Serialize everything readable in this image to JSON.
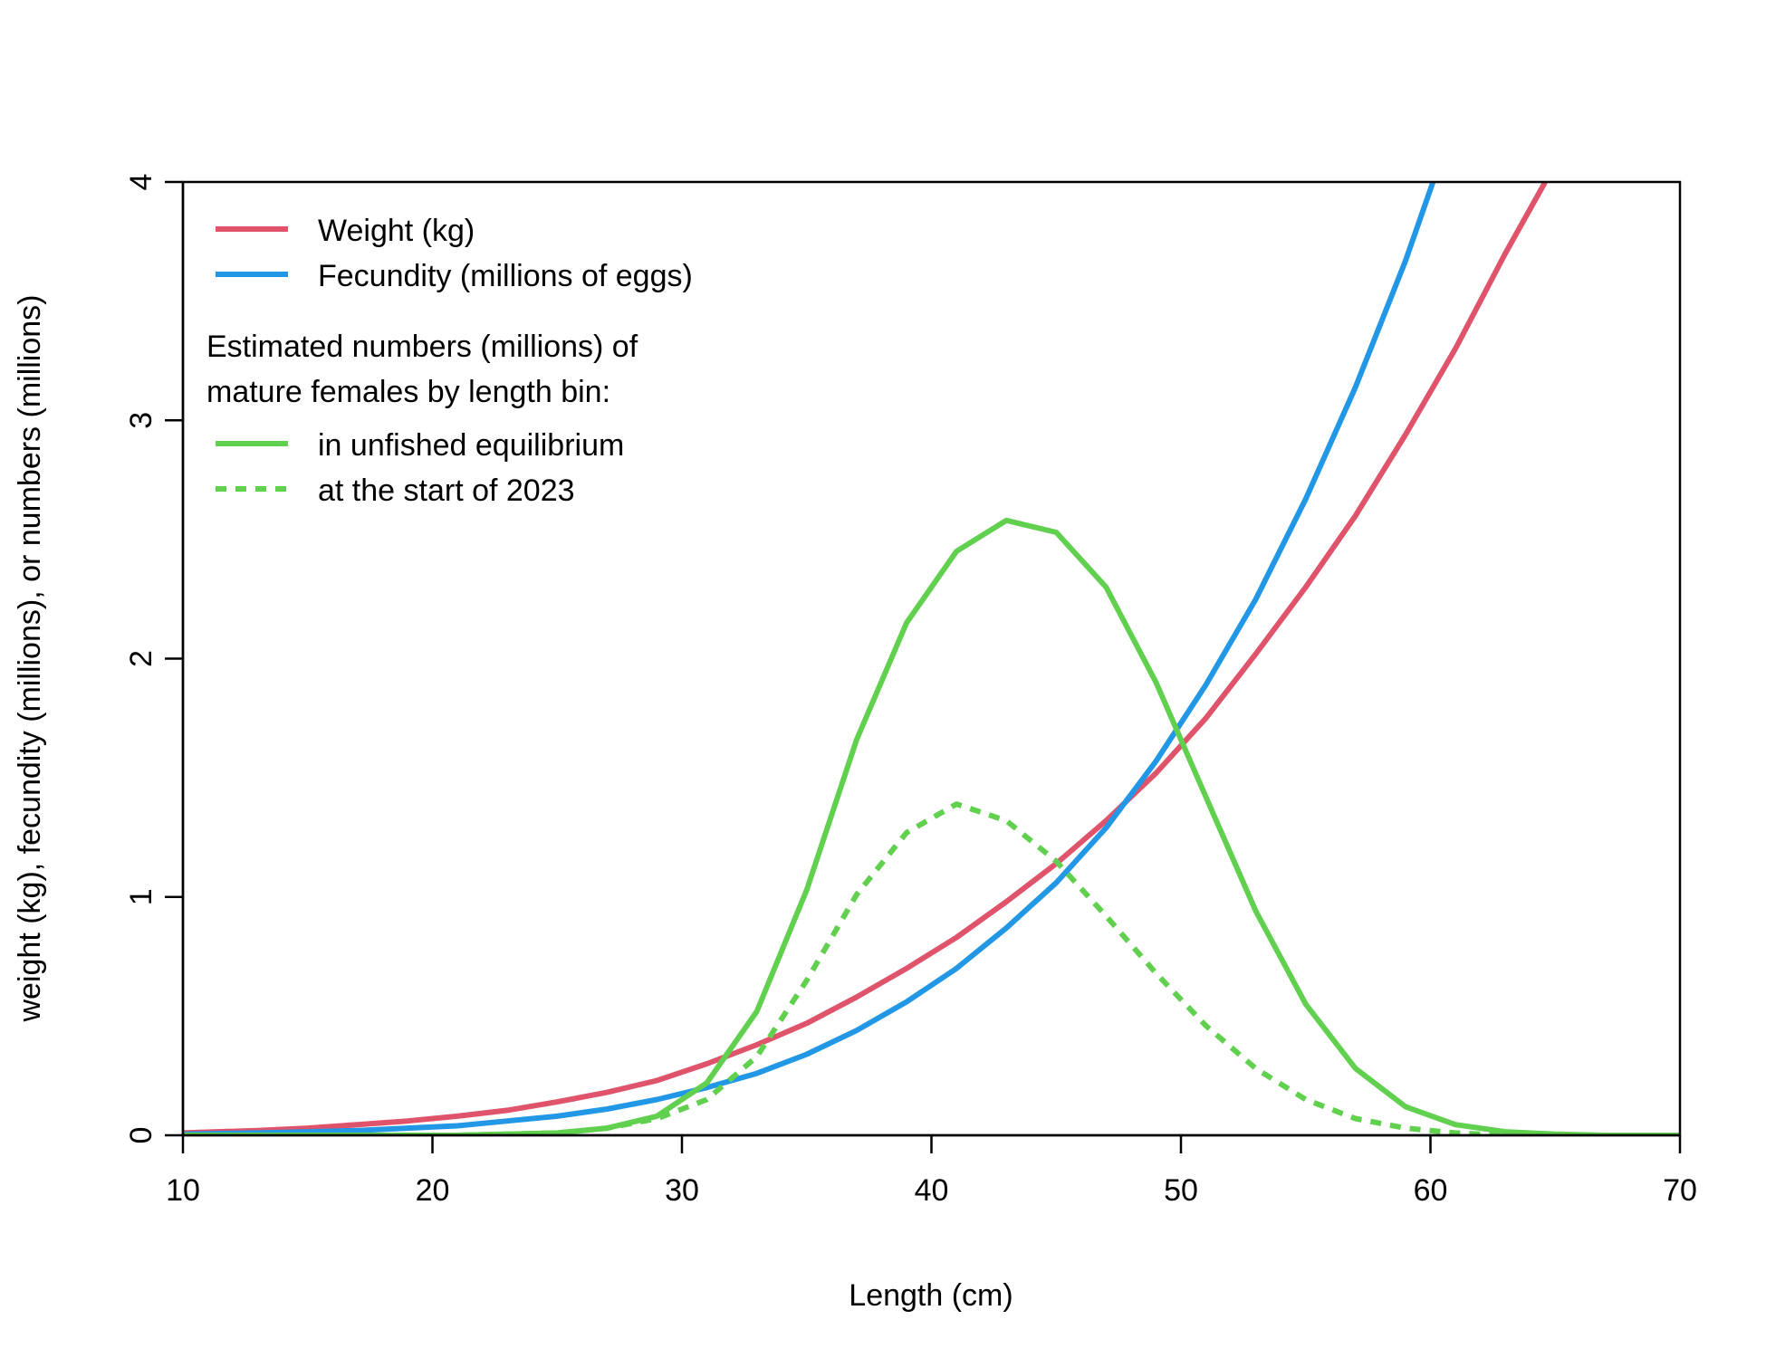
{
  "chart_data": {
    "type": "line",
    "xlabel": "Length (cm)",
    "ylabel": "weight (kg), fecundity (millions), or numbers (millions)",
    "xlim": [
      10,
      70
    ],
    "ylim": [
      0,
      4
    ],
    "xticks": [
      10,
      20,
      30,
      40,
      50,
      60,
      70
    ],
    "yticks": [
      0,
      1,
      2,
      3,
      4
    ],
    "grid": false,
    "legend_position": "top-left",
    "legend": {
      "entries": [
        {
          "label": "Weight (kg)",
          "series": "weight"
        },
        {
          "label": "Fecundity (millions of eggs)",
          "series": "fecundity"
        }
      ],
      "subtitle_lines": [
        "Estimated numbers (millions) of",
        "mature females by length bin:"
      ],
      "sub_entries": [
        {
          "label": "in unfished equilibrium",
          "series": "unfished"
        },
        {
          "label": "at the start of 2023",
          "series": "start2023"
        }
      ]
    },
    "series": [
      {
        "key": "weight",
        "color": "#DF536B",
        "dash": "solid",
        "x": [
          10,
          13,
          15,
          17,
          19,
          21,
          23,
          25,
          27,
          29,
          31,
          33,
          35,
          37,
          39,
          41,
          43,
          45,
          47,
          49,
          51,
          53,
          55,
          57,
          59,
          61,
          63,
          64.6
        ],
        "y": [
          0.01,
          0.02,
          0.03,
          0.045,
          0.06,
          0.08,
          0.105,
          0.14,
          0.18,
          0.23,
          0.3,
          0.38,
          0.47,
          0.58,
          0.7,
          0.83,
          0.98,
          1.14,
          1.32,
          1.52,
          1.75,
          2.02,
          2.3,
          2.6,
          2.94,
          3.3,
          3.7,
          4.0
        ]
      },
      {
        "key": "fecundity",
        "color": "#2297E6",
        "dash": "solid",
        "x": [
          10,
          13,
          15,
          17,
          19,
          21,
          23,
          25,
          27,
          29,
          31,
          33,
          35,
          37,
          39,
          41,
          43,
          45,
          47,
          49,
          51,
          53,
          55,
          57,
          59,
          60.1
        ],
        "y": [
          0.005,
          0.01,
          0.015,
          0.02,
          0.03,
          0.04,
          0.06,
          0.08,
          0.11,
          0.15,
          0.2,
          0.26,
          0.34,
          0.44,
          0.56,
          0.7,
          0.87,
          1.06,
          1.29,
          1.57,
          1.89,
          2.25,
          2.67,
          3.14,
          3.67,
          4.0
        ]
      },
      {
        "key": "unfished",
        "color": "#61D04F",
        "dash": "solid",
        "x": [
          10,
          13,
          15,
          17,
          19,
          21,
          23,
          25,
          27,
          29,
          31,
          33,
          35,
          37,
          39,
          41,
          43,
          45,
          47,
          49,
          51,
          53,
          55,
          57,
          59,
          61,
          63,
          65,
          67,
          70
        ],
        "y": [
          0.0,
          0.0,
          0.0,
          0.0,
          0.0,
          0.0,
          0.005,
          0.01,
          0.03,
          0.08,
          0.22,
          0.52,
          1.03,
          1.66,
          2.15,
          2.45,
          2.58,
          2.53,
          2.3,
          1.9,
          1.42,
          0.94,
          0.55,
          0.28,
          0.12,
          0.045,
          0.015,
          0.005,
          0.0,
          0.0
        ]
      },
      {
        "key": "start2023",
        "color": "#61D04F",
        "dash": "dashed",
        "x": [
          10,
          13,
          15,
          17,
          19,
          21,
          23,
          25,
          27,
          29,
          31,
          33,
          35,
          37,
          39,
          41,
          43,
          45,
          47,
          49,
          51,
          53,
          55,
          57,
          59,
          61,
          63
        ],
        "y": [
          0.0,
          0.0,
          0.0,
          0.0,
          0.0,
          0.0,
          0.005,
          0.01,
          0.03,
          0.07,
          0.15,
          0.33,
          0.65,
          1.01,
          1.27,
          1.39,
          1.32,
          1.15,
          0.92,
          0.68,
          0.46,
          0.28,
          0.15,
          0.07,
          0.03,
          0.01,
          0.0
        ]
      }
    ]
  }
}
